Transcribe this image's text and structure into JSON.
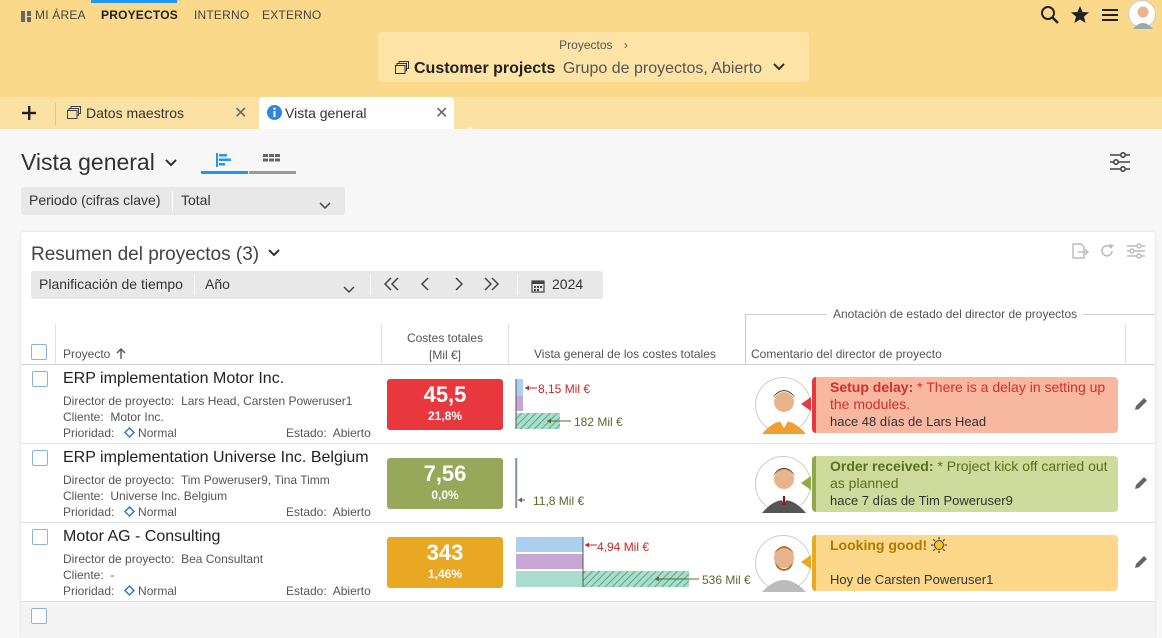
{
  "nav": {
    "mi_area": "MI ÁREA",
    "proyectos": "PROYECTOS",
    "interno": "INTERNO",
    "externo": "EXTERNO"
  },
  "breadcrumb": {
    "parent": "Proyectos",
    "chevron": "›",
    "title": "Customer projects",
    "subtitle": "Grupo de proyectos, Abierto"
  },
  "tabs": [
    {
      "label": "Datos maestros",
      "icon": "stack-icon"
    },
    {
      "label": "Vista general",
      "icon": "info-icon"
    }
  ],
  "view": {
    "title": "Vista general"
  },
  "filter1": {
    "label": "Periodo (cifras clave)",
    "value": "Total"
  },
  "panel": {
    "title": "Resumen del proyectos (3)",
    "filter_label": "Planificación de tiempo",
    "filter_value": "Año",
    "year": "2024",
    "nav": {
      "first": "《",
      "prev": "〈",
      "next": "〉",
      "last": "》"
    }
  },
  "columns": {
    "project": "Proyecto",
    "costs_line1": "Costes totales",
    "costs_line2": "[Mil €]",
    "overview": "Vista general de los costes totales",
    "group": "Anotación de estado del director de proyectos",
    "comment": "Comentario del director de proyecto"
  },
  "labels": {
    "director": "Director de proyecto:",
    "client": "Cliente:",
    "priority": "Prioridad:",
    "status": "Estado:"
  },
  "projects": [
    {
      "name": "ERP implementation Motor Inc.",
      "director": "Lars Head, Carsten Poweruser1",
      "client": "Motor Inc.",
      "priority": "Normal",
      "status": "Abierto",
      "cost": "45,5",
      "percent": "21,8%",
      "cost_color": "#e8383d",
      "bar_label1": "8,15 Mil €",
      "bar_label2": "182 Mil €",
      "comment_title": "Setup delay:",
      "comment_text": " * There is a delay in setting up the modules.",
      "comment_by": "hace 48 días de Lars Head",
      "comment_bg": "#f7b7a0",
      "comment_accent": "#e8383d",
      "title_color": "#d32f2f"
    },
    {
      "name": "ERP implementation Universe Inc. Belgium",
      "director": "Tim Poweruser9, Tina Timm",
      "client": "Universe Inc. Belgium",
      "priority": "Normal",
      "status": "Abierto",
      "cost": "7,56",
      "percent": "0,0%",
      "cost_color": "#98a85a",
      "bar_label1": "",
      "bar_label2": "11,8 Mil €",
      "comment_title": "Order received:",
      "comment_text": " * Project kick off carried out as planned",
      "comment_by": "hace 7 días de Tim Poweruser9",
      "comment_bg": "#cfdb9c",
      "comment_accent": "#8fa848",
      "title_color": "#5a6e1e"
    },
    {
      "name": "Motor AG - Consulting",
      "director": "Bea Consultant",
      "client": "-",
      "priority": "Normal",
      "status": "Abierto",
      "cost": "343",
      "percent": "1,46%",
      "cost_color": "#e9a823",
      "bar_label1": "4,94 Mil €",
      "bar_label2": "536 Mil €",
      "comment_title": "Looking good!",
      "comment_text": "",
      "comment_by": "Hoy de Carsten Poweruser1",
      "comment_bg": "#fdd88a",
      "comment_accent": "#e9a823",
      "title_color": "#b07a00"
    }
  ]
}
